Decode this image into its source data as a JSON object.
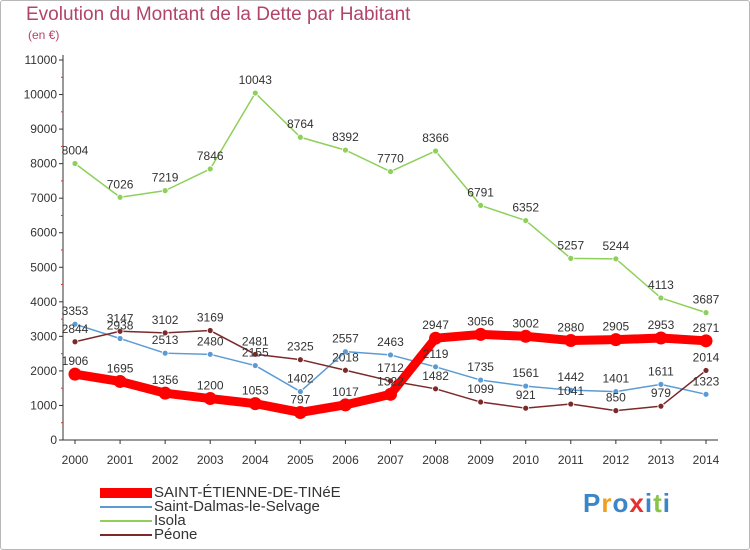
{
  "header": {
    "title": "Evolution du Montant de la Dette par Habitant",
    "subtitle": "(en €)"
  },
  "logo": {
    "text": "Proxiti",
    "colors": [
      "#3a86c8",
      "#f0a020",
      "#3a86c8",
      "#e63030",
      "#3a86c8",
      "#8bc34a",
      "#3a86c8"
    ]
  },
  "chart_data": {
    "type": "line",
    "categories": [
      "2000",
      "2001",
      "2002",
      "2003",
      "2004",
      "2005",
      "2006",
      "2007",
      "2008",
      "2009",
      "2010",
      "2011",
      "2012",
      "2013",
      "2014"
    ],
    "ylim": [
      0,
      11000
    ],
    "yticks": [
      0,
      1000,
      2000,
      3000,
      4000,
      5000,
      6000,
      7000,
      8000,
      9000,
      10000,
      11000
    ],
    "grid": false,
    "legend_position": "bottom-left",
    "series": [
      {
        "name": "SAINT-ÉTIENNE-DE-TINéE",
        "color": "#ff0000",
        "values": [
          1906,
          1695,
          1356,
          1200,
          1053,
          797,
          1017,
          1322,
          2947,
          3056,
          3002,
          2880,
          2905,
          2953,
          2871
        ]
      },
      {
        "name": "Saint-Dalmas-le-Selvage",
        "color": "#5b9bd5",
        "values": [
          3353,
          2938,
          2513,
          2480,
          2155,
          1402,
          2557,
          2463,
          2119,
          1735,
          1561,
          1442,
          1401,
          1611,
          1323
        ]
      },
      {
        "name": "Isola",
        "color": "#8ed05b",
        "values": [
          8004,
          7026,
          7219,
          7846,
          10043,
          8764,
          8392,
          7770,
          8366,
          6791,
          6352,
          5257,
          5244,
          4113,
          3687
        ]
      },
      {
        "name": "Péone",
        "color": "#7b2a2a",
        "values": [
          2844,
          3147,
          3102,
          3169,
          2481,
          2325,
          2018,
          1712,
          1482,
          1099,
          921,
          1041,
          850,
          979,
          2014
        ]
      }
    ]
  }
}
